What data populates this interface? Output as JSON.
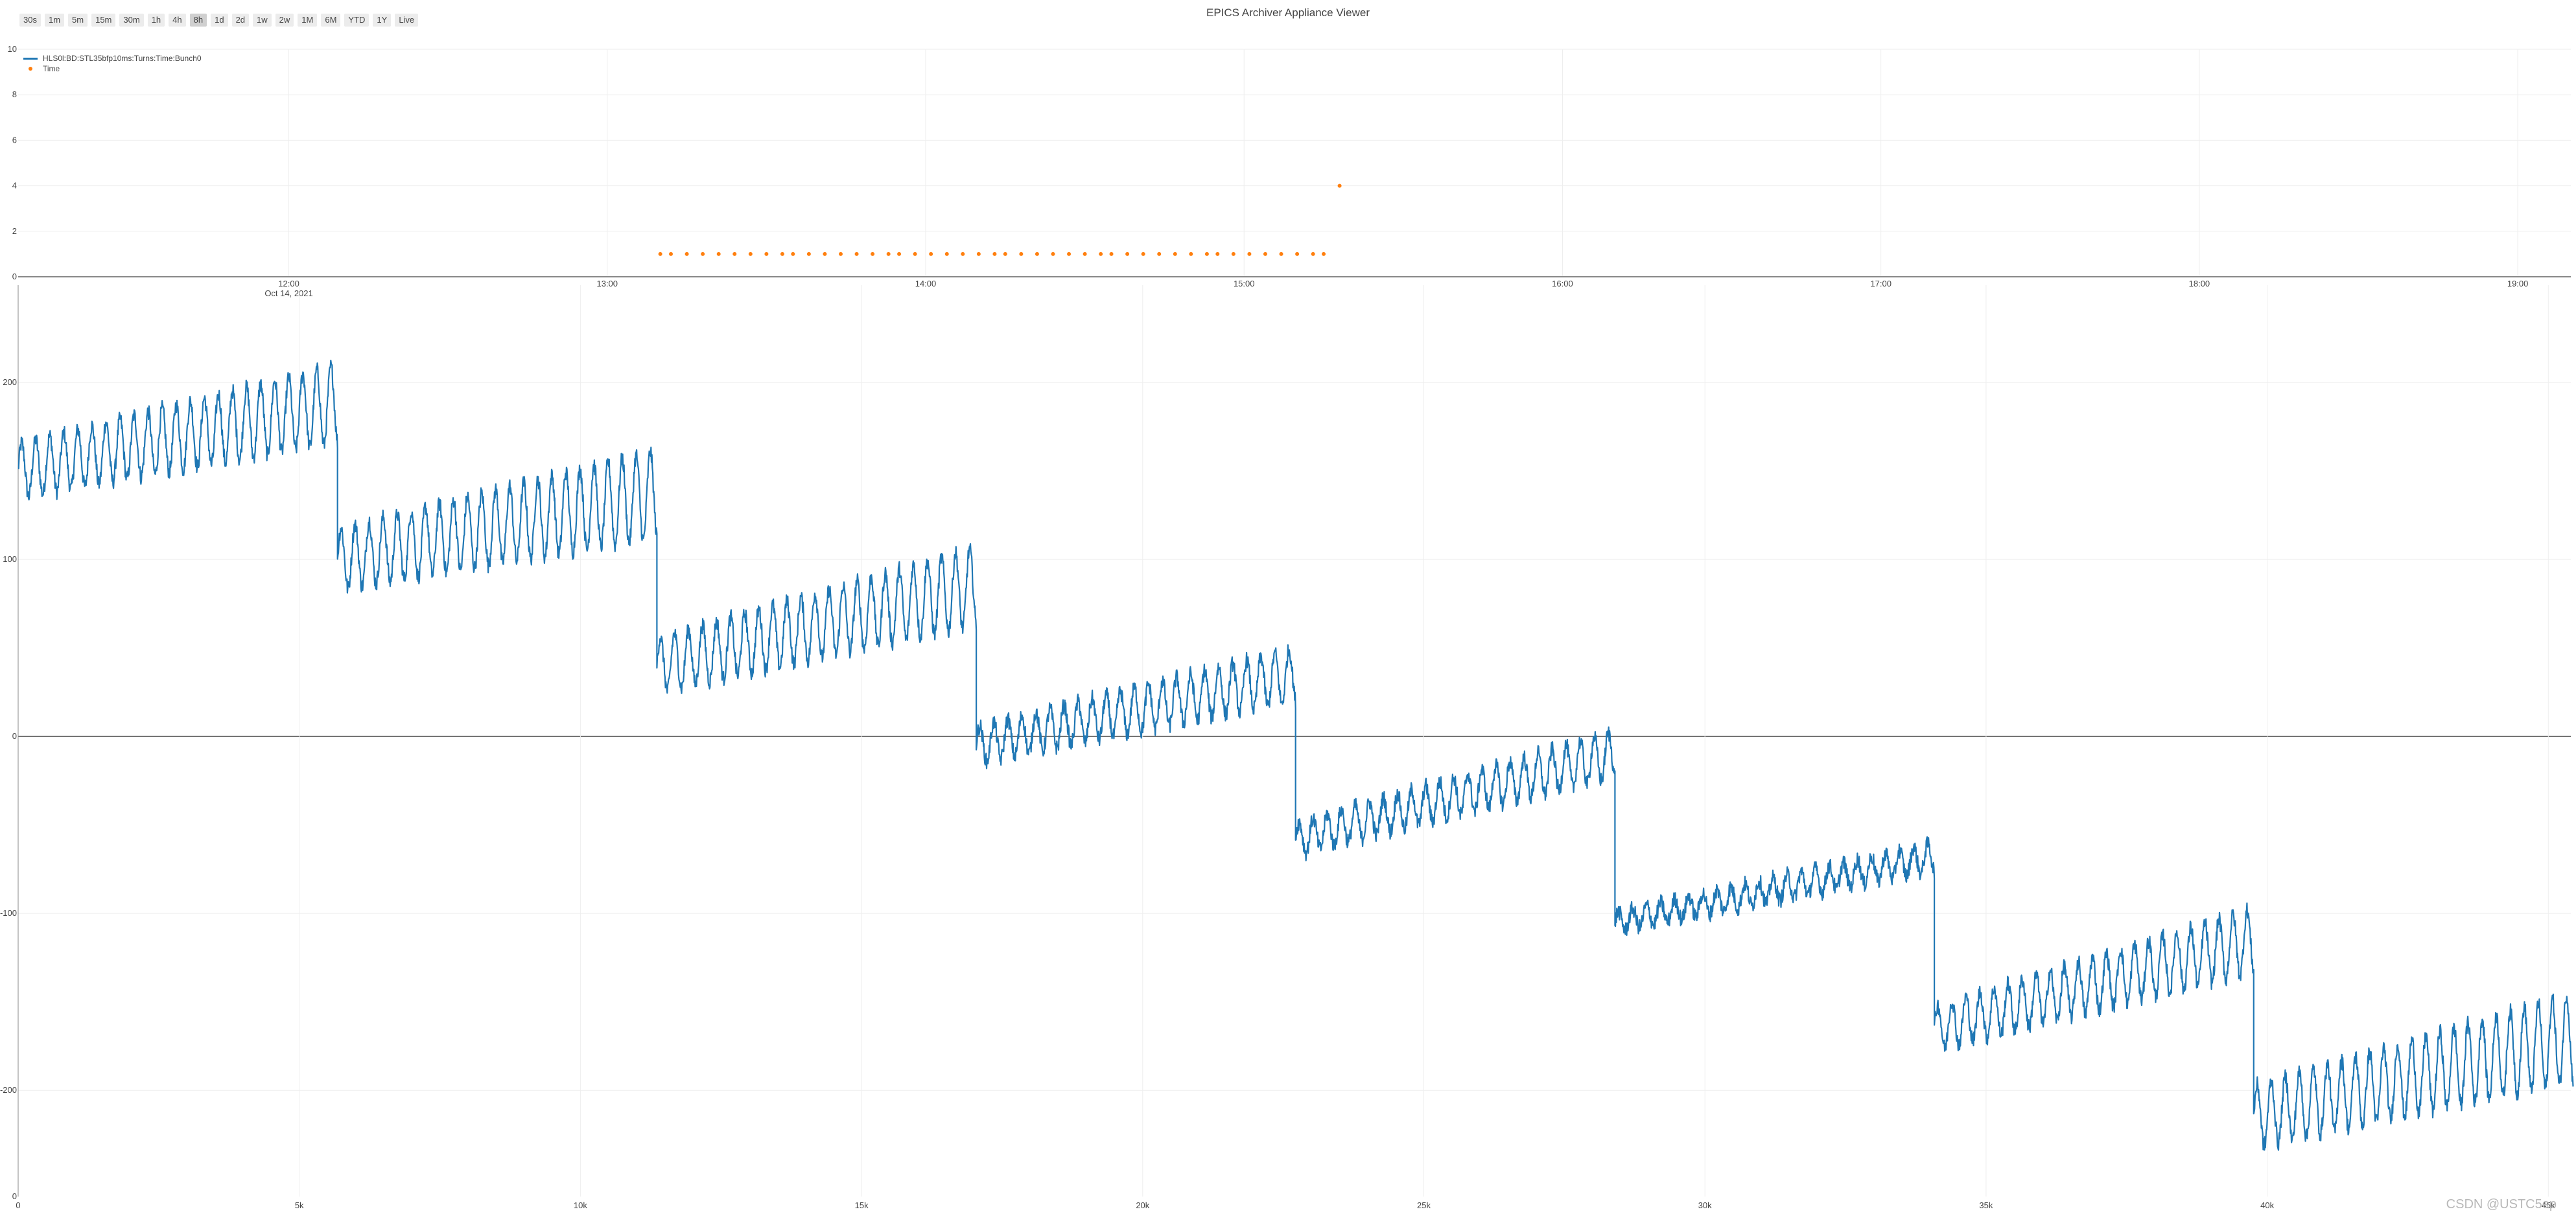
{
  "header": {
    "title": "EPICS Archiver Appliance Viewer"
  },
  "range_buttons": [
    {
      "label": "30s"
    },
    {
      "label": "1m"
    },
    {
      "label": "5m"
    },
    {
      "label": "15m"
    },
    {
      "label": "30m"
    },
    {
      "label": "1h"
    },
    {
      "label": "4h"
    },
    {
      "label": "8h",
      "active": true
    },
    {
      "label": "1d"
    },
    {
      "label": "2d"
    },
    {
      "label": "1w"
    },
    {
      "label": "2w"
    },
    {
      "label": "1M"
    },
    {
      "label": "6M"
    },
    {
      "label": "YTD"
    },
    {
      "label": "1Y"
    },
    {
      "label": "Live"
    }
  ],
  "legend": {
    "series_line": "HLS0l:BD:STL35bfp10ms:Turns:Time:Bunch0",
    "series_markers": "Time"
  },
  "watermark": "CSDN @USTC5ep",
  "colors": {
    "line": "#1f77b4",
    "markers": "#ff7f0e",
    "grid": "#eeeeee",
    "axis": "#444444"
  },
  "chart_data": [
    {
      "type": "scatter",
      "series": [
        {
          "name": "Time",
          "x": [
            "13:10",
            "13:12",
            "13:15",
            "13:18",
            "13:21",
            "13:24",
            "13:27",
            "13:30",
            "13:33",
            "13:35",
            "13:38",
            "13:41",
            "13:44",
            "13:47",
            "13:50",
            "13:53",
            "13:55",
            "13:58",
            "14:01",
            "14:04",
            "14:07",
            "14:10",
            "14:13",
            "14:15",
            "14:18",
            "14:21",
            "14:24",
            "14:27",
            "14:30",
            "14:33",
            "14:35",
            "14:38",
            "14:41",
            "14:44",
            "14:47",
            "14:50",
            "14:53",
            "14:55",
            "14:58",
            "15:01",
            "15:04",
            "15:07",
            "15:10",
            "15:13",
            "15:15",
            "15:18"
          ],
          "values": [
            1,
            1,
            1,
            1,
            1,
            1,
            1,
            1,
            1,
            1,
            1,
            1,
            1,
            1,
            1,
            1,
            1,
            1,
            1,
            1,
            1,
            1,
            1,
            1,
            1,
            1,
            1,
            1,
            1,
            1,
            1,
            1,
            1,
            1,
            1,
            1,
            1,
            1,
            1,
            1,
            1,
            1,
            1,
            1,
            1,
            4
          ]
        }
      ],
      "x_ticks": [
        "12:00",
        "13:00",
        "14:00",
        "15:00",
        "16:00",
        "17:00",
        "18:00",
        "19:00"
      ],
      "x_date_label": "Oct 14, 2021",
      "xlim": [
        "11:09",
        "19:10"
      ],
      "y_ticks": [
        "0",
        "2",
        "4",
        "6",
        "8",
        "10"
      ],
      "ylim": [
        0,
        10
      ],
      "grid": true,
      "legend_position": "top-left"
    },
    {
      "type": "line",
      "series": [
        {
          "name": "HLS0l:BD:STL35bfp10ms:Turns:Time:Bunch0",
          "segments": [
            {
              "x_start": 0,
              "x_end": 5680,
              "y_start": 150,
              "y_end": 188,
              "amplitude": 22
            },
            {
              "x_start": 5680,
              "x_end": 11360,
              "y_start": 100,
              "y_end": 137,
              "amplitude": 25
            },
            {
              "x_start": 11360,
              "x_end": 17040,
              "y_start": 40,
              "y_end": 85,
              "amplitude": 22
            },
            {
              "x_start": 17040,
              "x_end": 22720,
              "y_start": -5,
              "y_end": 35,
              "amplitude": 15
            },
            {
              "x_start": 22720,
              "x_end": 28400,
              "y_start": -58,
              "y_end": -10,
              "amplitude": 13
            },
            {
              "x_start": 28400,
              "x_end": 34080,
              "y_start": -105,
              "y_end": -68,
              "amplitude": 8
            },
            {
              "x_start": 34080,
              "x_end": 39760,
              "y_start": -165,
              "y_end": -115,
              "amplitude": 18
            },
            {
              "x_start": 39760,
              "x_end": 45440,
              "y_start": -215,
              "y_end": -170,
              "amplitude": 25
            }
          ]
        }
      ],
      "x_ticks": [
        "0",
        "5k",
        "10k",
        "15k",
        "20k",
        "25k",
        "30k",
        "35k",
        "40k",
        "45k"
      ],
      "xlim": [
        0,
        45400
      ],
      "y_ticks": [
        "-200",
        "-100",
        "0",
        "100",
        "200"
      ],
      "ylim": [
        -260,
        255
      ],
      "grid": true
    }
  ]
}
